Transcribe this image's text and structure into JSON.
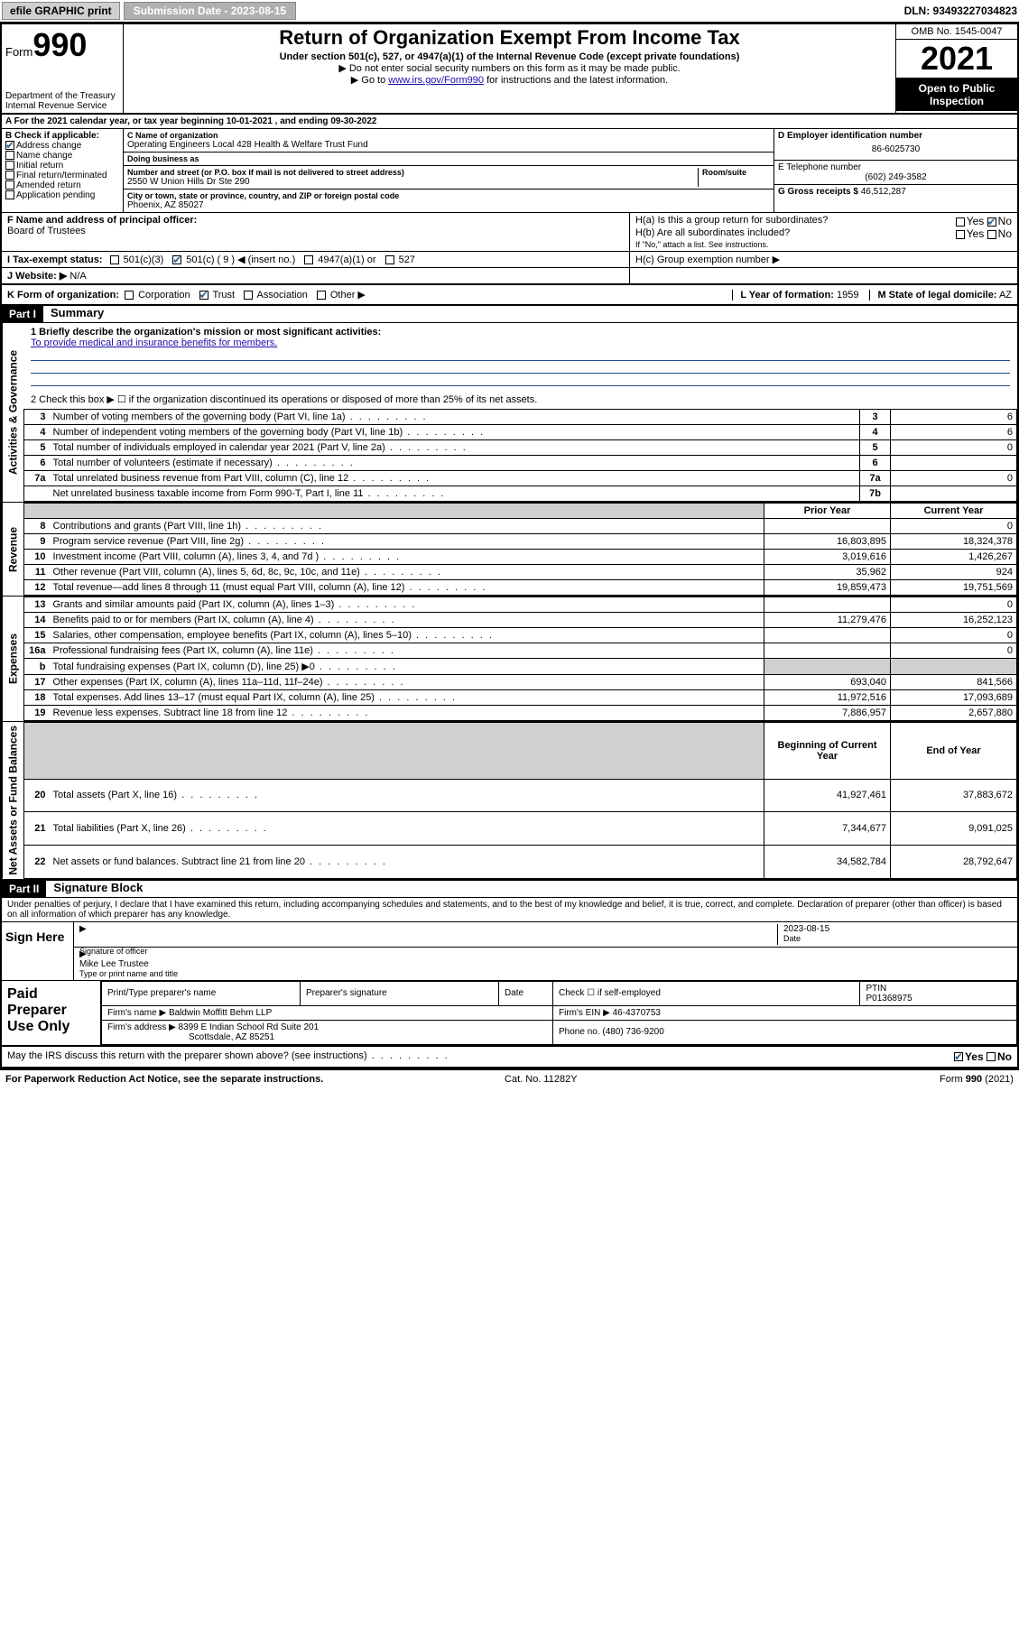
{
  "topbar": {
    "efile": "efile GRAPHIC print",
    "submission_label": "Submission Date - 2023-08-15",
    "dln": "DLN: 93493227034823"
  },
  "header": {
    "form_word": "Form",
    "form_num": "990",
    "dept": "Department of the Treasury\nInternal Revenue Service",
    "title": "Return of Organization Exempt From Income Tax",
    "sub1": "Under section 501(c), 527, or 4947(a)(1) of the Internal Revenue Code (except private foundations)",
    "sub2": "▶ Do not enter social security numbers on this form as it may be made public.",
    "sub3_pre": "▶ Go to ",
    "sub3_link": "www.irs.gov/Form990",
    "sub3_post": " for instructions and the latest information.",
    "omb": "OMB No. 1545-0047",
    "year": "2021",
    "inspection": "Open to Public Inspection"
  },
  "line_a": "A For the 2021 calendar year, or tax year beginning 10-01-2021  , and ending 09-30-2022",
  "box_b": {
    "label": "B Check if applicable:",
    "items": [
      {
        "label": "Address change",
        "checked": true
      },
      {
        "label": "Name change",
        "checked": false
      },
      {
        "label": "Initial return",
        "checked": false
      },
      {
        "label": "Final return/terminated",
        "checked": false
      },
      {
        "label": "Amended return",
        "checked": false
      },
      {
        "label": "Application pending",
        "checked": false
      }
    ]
  },
  "box_c": {
    "name_label": "C Name of organization",
    "name": "Operating Engineers Local 428 Health & Welfare Trust Fund",
    "dba_label": "Doing business as",
    "addr_label": "Number and street (or P.O. box if mail is not delivered to street address)",
    "room_label": "Room/suite",
    "addr": "2550 W Union Hills Dr Ste 290",
    "city_label": "City or town, state or province, country, and ZIP or foreign postal code",
    "city": "Phoenix, AZ  85027"
  },
  "box_d": {
    "label": "D Employer identification number",
    "value": "86-6025730"
  },
  "box_e": {
    "label": "E Telephone number",
    "value": "(602) 249-3582"
  },
  "box_g": {
    "label": "G Gross receipts $",
    "value": "46,512,287"
  },
  "box_f": {
    "label": "F Name and address of principal officer:",
    "value": "Board of Trustees"
  },
  "box_h": {
    "ha": "H(a)  Is this a group return for subordinates?",
    "hb": "H(b)  Are all subordinates included?",
    "hb_note": "If \"No,\" attach a list. See instructions.",
    "hc": "H(c)  Group exemption number ▶",
    "yes": "Yes",
    "no": "No"
  },
  "box_i": {
    "label": "I  Tax-exempt status:",
    "opts": [
      "501(c)(3)",
      "501(c) ( 9 ) ◀ (insert no.)",
      "4947(a)(1) or",
      "527"
    ],
    "checked_idx": 1
  },
  "box_j": {
    "label": "J  Website: ▶",
    "value": "N/A"
  },
  "box_k": {
    "label": "K Form of organization:",
    "opts": [
      "Corporation",
      "Trust",
      "Association",
      "Other ▶"
    ],
    "checked_idx": 1
  },
  "box_l": {
    "label": "L Year of formation:",
    "value": "1959"
  },
  "box_m": {
    "label": "M State of legal domicile:",
    "value": "AZ"
  },
  "part1": {
    "header": "Part I",
    "title": "Summary",
    "q1_label": "1  Briefly describe the organization's mission or most significant activities:",
    "q1_text": "To provide medical and insurance benefits for members.",
    "q2": "2  Check this box ▶ ☐  if the organization discontinued its operations or disposed of more than 25% of its net assets.",
    "prior_year": "Prior Year",
    "current_year": "Current Year",
    "boy": "Beginning of Current Year",
    "eoy": "End of Year"
  },
  "gov_rows": [
    {
      "ln": "3",
      "desc": "Number of voting members of the governing body (Part VI, line 1a)",
      "box": "3",
      "val": "6"
    },
    {
      "ln": "4",
      "desc": "Number of independent voting members of the governing body (Part VI, line 1b)",
      "box": "4",
      "val": "6"
    },
    {
      "ln": "5",
      "desc": "Total number of individuals employed in calendar year 2021 (Part V, line 2a)",
      "box": "5",
      "val": "0"
    },
    {
      "ln": "6",
      "desc": "Total number of volunteers (estimate if necessary)",
      "box": "6",
      "val": ""
    },
    {
      "ln": "7a",
      "desc": "Total unrelated business revenue from Part VIII, column (C), line 12",
      "box": "7a",
      "val": "0"
    },
    {
      "ln": "",
      "desc": "Net unrelated business taxable income from Form 990-T, Part I, line 11",
      "box": "7b",
      "val": ""
    }
  ],
  "rev_rows": [
    {
      "ln": "8",
      "desc": "Contributions and grants (Part VIII, line 1h)",
      "p": "",
      "c": "0"
    },
    {
      "ln": "9",
      "desc": "Program service revenue (Part VIII, line 2g)",
      "p": "16,803,895",
      "c": "18,324,378"
    },
    {
      "ln": "10",
      "desc": "Investment income (Part VIII, column (A), lines 3, 4, and 7d )",
      "p": "3,019,616",
      "c": "1,426,267"
    },
    {
      "ln": "11",
      "desc": "Other revenue (Part VIII, column (A), lines 5, 6d, 8c, 9c, 10c, and 11e)",
      "p": "35,962",
      "c": "924"
    },
    {
      "ln": "12",
      "desc": "Total revenue—add lines 8 through 11 (must equal Part VIII, column (A), line 12)",
      "p": "19,859,473",
      "c": "19,751,569"
    }
  ],
  "exp_rows": [
    {
      "ln": "13",
      "desc": "Grants and similar amounts paid (Part IX, column (A), lines 1–3)",
      "p": "",
      "c": "0"
    },
    {
      "ln": "14",
      "desc": "Benefits paid to or for members (Part IX, column (A), line 4)",
      "p": "11,279,476",
      "c": "16,252,123"
    },
    {
      "ln": "15",
      "desc": "Salaries, other compensation, employee benefits (Part IX, column (A), lines 5–10)",
      "p": "",
      "c": "0"
    },
    {
      "ln": "16a",
      "desc": "Professional fundraising fees (Part IX, column (A), line 11e)",
      "p": "",
      "c": "0"
    },
    {
      "ln": "b",
      "desc": "Total fundraising expenses (Part IX, column (D), line 25) ▶0",
      "p": "shade",
      "c": "shade"
    },
    {
      "ln": "17",
      "desc": "Other expenses (Part IX, column (A), lines 11a–11d, 11f–24e)",
      "p": "693,040",
      "c": "841,566"
    },
    {
      "ln": "18",
      "desc": "Total expenses. Add lines 13–17 (must equal Part IX, column (A), line 25)",
      "p": "11,972,516",
      "c": "17,093,689"
    },
    {
      "ln": "19",
      "desc": "Revenue less expenses. Subtract line 18 from line 12",
      "p": "7,886,957",
      "c": "2,657,880"
    }
  ],
  "net_rows": [
    {
      "ln": "20",
      "desc": "Total assets (Part X, line 16)",
      "p": "41,927,461",
      "c": "37,883,672"
    },
    {
      "ln": "21",
      "desc": "Total liabilities (Part X, line 26)",
      "p": "7,344,677",
      "c": "9,091,025"
    },
    {
      "ln": "22",
      "desc": "Net assets or fund balances. Subtract line 21 from line 20",
      "p": "34,582,784",
      "c": "28,792,647"
    }
  ],
  "part2": {
    "header": "Part II",
    "title": "Signature Block",
    "penalty": "Under penalties of perjury, I declare that I have examined this return, including accompanying schedules and statements, and to the best of my knowledge and belief, it is true, correct, and complete. Declaration of preparer (other than officer) is based on all information of which preparer has any knowledge."
  },
  "sign": {
    "label": "Sign Here",
    "sig_of_officer": "Signature of officer",
    "date": "Date",
    "date_val": "2023-08-15",
    "name": "Mike Lee Trustee",
    "name_label": "Type or print name and title"
  },
  "prep": {
    "label": "Paid Preparer Use Only",
    "print_name": "Print/Type preparer's name",
    "sig": "Preparer's signature",
    "date": "Date",
    "check": "Check ☐ if self-employed",
    "ptin_label": "PTIN",
    "ptin": "P01368975",
    "firm_name_label": "Firm's name   ▶",
    "firm_name": "Baldwin Moffitt Behm LLP",
    "firm_ein_label": "Firm's EIN ▶",
    "firm_ein": "46-4370753",
    "firm_addr_label": "Firm's address ▶",
    "firm_addr1": "8399 E Indian School Rd Suite 201",
    "firm_addr2": "Scottsdale, AZ  85251",
    "phone_label": "Phone no.",
    "phone": "(480) 736-9200"
  },
  "footer": {
    "discuss": "May the IRS discuss this return with the preparer shown above? (see instructions)",
    "yes": "Yes",
    "no": "No",
    "paperwork": "For Paperwork Reduction Act Notice, see the separate instructions.",
    "cat": "Cat. No. 11282Y",
    "formref": "Form 990 (2021)"
  },
  "vlabels": {
    "gov": "Activities & Governance",
    "rev": "Revenue",
    "exp": "Expenses",
    "net": "Net Assets or Fund Balances"
  }
}
